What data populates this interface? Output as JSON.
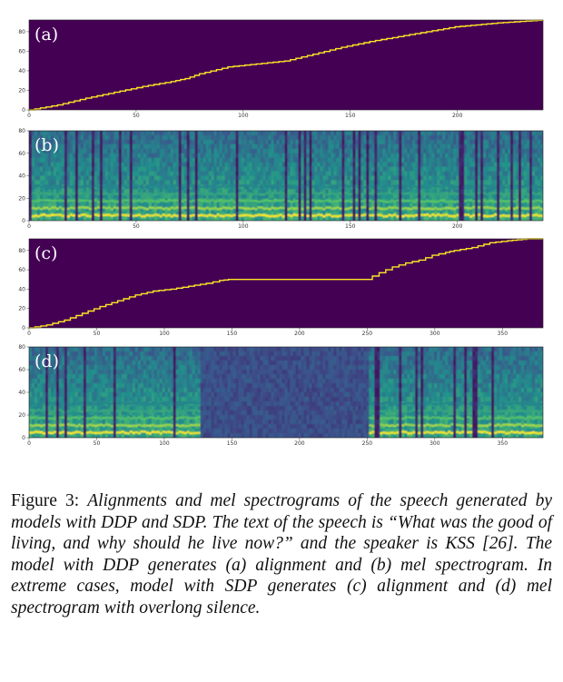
{
  "figure": {
    "panels": [
      {
        "id": "a",
        "label": "(a)",
        "kind": "alignment",
        "x_max": 240,
        "x_ticks": [
          0,
          50,
          100,
          150,
          200
        ],
        "y_ticks": [
          0,
          20,
          40,
          60,
          80
        ],
        "y_max": 92,
        "path": [
          [
            0,
            0
          ],
          [
            20,
            5
          ],
          [
            40,
            12
          ],
          [
            60,
            18
          ],
          [
            80,
            24
          ],
          [
            100,
            29
          ],
          [
            110,
            32
          ],
          [
            120,
            37
          ],
          [
            140,
            44
          ],
          [
            160,
            47
          ],
          [
            180,
            50
          ],
          [
            200,
            57
          ],
          [
            220,
            64
          ],
          [
            240,
            70
          ],
          [
            260,
            75
          ],
          [
            280,
            80
          ],
          [
            300,
            85
          ],
          [
            330,
            89
          ],
          [
            362,
            92
          ]
        ],
        "path_x_domain": 362
      },
      {
        "id": "b",
        "label": "(b)",
        "kind": "spectrogram",
        "x_max": 240,
        "x_ticks": [
          0,
          50,
          100,
          150,
          200
        ],
        "y_ticks": [
          0,
          20,
          40,
          60,
          80
        ],
        "y_max": 80
      },
      {
        "id": "c",
        "label": "(c)",
        "kind": "alignment",
        "x_max": 380,
        "x_ticks": [
          0,
          50,
          100,
          150,
          200,
          250,
          300,
          350
        ],
        "y_ticks": [
          0,
          20,
          40,
          60,
          80
        ],
        "y_max": 92,
        "path": [
          [
            0,
            0
          ],
          [
            20,
            3
          ],
          [
            40,
            8
          ],
          [
            60,
            15
          ],
          [
            80,
            22
          ],
          [
            100,
            28
          ],
          [
            120,
            34
          ],
          [
            140,
            38
          ],
          [
            160,
            40
          ],
          [
            180,
            43
          ],
          [
            200,
            46
          ],
          [
            215,
            49
          ],
          [
            225,
            50
          ],
          [
            380,
            50
          ],
          [
            395,
            57
          ],
          [
            410,
            63
          ],
          [
            425,
            67
          ],
          [
            440,
            70
          ],
          [
            455,
            75
          ],
          [
            470,
            78
          ],
          [
            480,
            80
          ],
          [
            500,
            83
          ],
          [
            520,
            88
          ],
          [
            540,
            90
          ],
          [
            562,
            92
          ],
          [
            580,
            92
          ]
        ],
        "path_x_domain": 580
      },
      {
        "id": "d",
        "label": "(d)",
        "kind": "spectrogram",
        "x_max": 380,
        "x_ticks": [
          0,
          50,
          100,
          150,
          200,
          250,
          300,
          350
        ],
        "y_ticks": [
          0,
          20,
          40,
          60,
          80
        ],
        "y_max": 80,
        "silence": [
          125,
          250
        ]
      }
    ]
  },
  "caption": {
    "lead": "Figure 3: ",
    "body": "Alignments and mel spectrograms of the speech generated by models with DDP and SDP. The text of the speech is “What was the good of living, and why should he live now?” and the speaker is KSS [26]. The model with DDP generates (a) alignment and (b) mel spectrogram. In extreme cases, model with SDP generates (c) alignment and (d) mel spectrogram with overlong silence."
  },
  "colors": {
    "background": "#440154",
    "line": "#fde725"
  }
}
